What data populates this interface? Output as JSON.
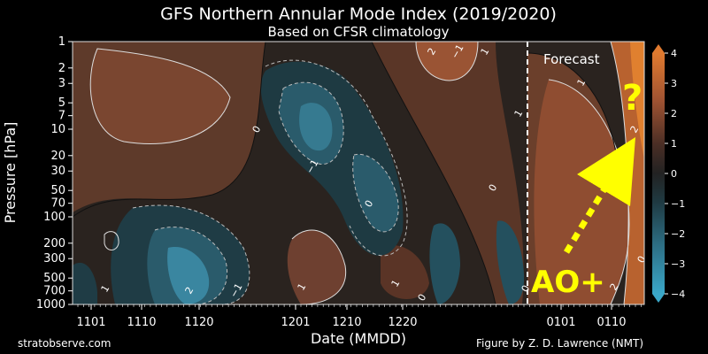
{
  "chart_data": {
    "type": "heatmap",
    "title": "GFS Northern Annular Mode Index (2019/2020)",
    "subtitle": "Based on CFSR climatology",
    "xlabel": "Date (MMDD)",
    "ylabel": "Pressure [hPa]",
    "x_ticks": [
      "1101",
      "1110",
      "1120",
      "1201",
      "1210",
      "1220",
      "0101",
      "0110"
    ],
    "y_ticks": [
      "1",
      "2",
      "3",
      "5",
      "7",
      "10",
      "20",
      "30",
      "50",
      "70",
      "100",
      "200",
      "300",
      "500",
      "700",
      "1000"
    ],
    "y_scale": "log (reversed)",
    "ylim": [
      1000,
      1
    ],
    "colorbar": {
      "range": [
        -4,
        4
      ],
      "ticks": [
        "4",
        "3",
        "2",
        "1",
        "0",
        "−1",
        "−2",
        "−3",
        "−4"
      ],
      "low_color": "#3aa3c4",
      "mid_color": "#1f1f1f",
      "high_color": "#d9732e"
    },
    "forecast_label": "Forecast",
    "contour_labels": [
      "0",
      "−1",
      "1",
      "2",
      "−1",
      "0",
      "0",
      "1",
      "1",
      "−1",
      "2",
      "0",
      "1",
      "1",
      "0",
      "2",
      "2",
      "1",
      "0"
    ],
    "annotations": {
      "ao": "AO+",
      "question": "?"
    },
    "credit_left": "stratobserve.com",
    "credit_right": "Figure by Z. D. Lawrence (NMT)"
  }
}
